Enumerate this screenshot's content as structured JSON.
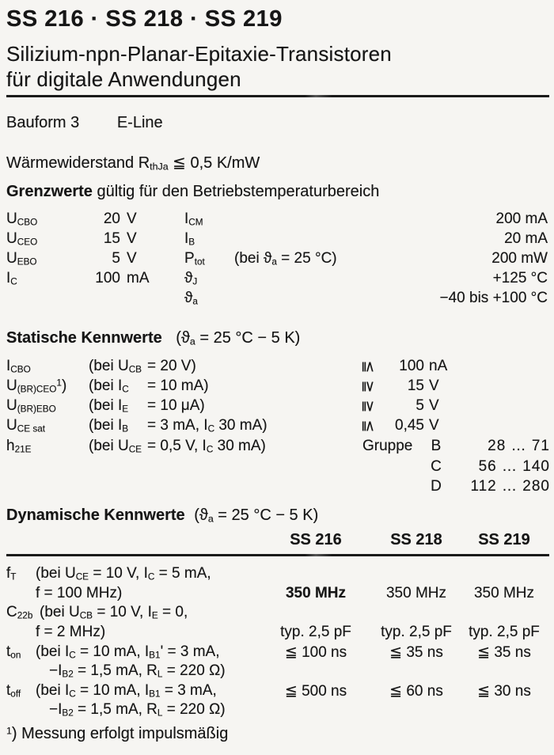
{
  "header": {
    "title": "SS 216 · SS 218 · SS 219",
    "subtitle_line1": "Silizium-npn-Planar-Epitaxie-Transistoren",
    "subtitle_line2": "für digitale Anwendungen",
    "bauform_label": "Bauform 3",
    "bauform_value": "E-Line"
  },
  "thermal": "Wärmewiderstand  R_{thJa} ≦ 0,5 K/mW",
  "limits": {
    "heading_bold": "Grenzwerte",
    "heading_rest": " gültig für den Betriebstemperaturbereich",
    "rows": [
      {
        "sym1": "U_{CBO}",
        "v1n": "20",
        "v1u": "V",
        "sym2": "I_{CM}",
        "cond": "",
        "val2": "200 mA"
      },
      {
        "sym1": "U_{CEO}",
        "v1n": "15",
        "v1u": "V",
        "sym2": "I_{B}",
        "cond": "",
        "val2": "20 mA"
      },
      {
        "sym1": "U_{EBO}",
        "v1n": "5",
        "v1u": "V",
        "sym2": "P_{tot}",
        "cond": "(bei ϑ_{a} = 25 °C)",
        "val2": "200 mW"
      },
      {
        "sym1": "I_{C}",
        "v1n": "100",
        "v1u": "mA",
        "sym2": "ϑ_{J}",
        "cond": "",
        "val2": "+125 °C"
      },
      {
        "sym1": "",
        "v1n": "",
        "v1u": "",
        "sym2": "ϑ_{a}",
        "cond": "",
        "val2": "−40 bis +100 °C"
      }
    ]
  },
  "statics": {
    "heading_bold": "Statische Kennwerte",
    "heading_cond": "(ϑ_{a} = 25 °C − 5 K)",
    "rows": [
      {
        "sym": "I_{CBO}",
        "c1": "(bei U_{CB}",
        "c2": "= 20 V)",
        "rel": "≦",
        "vn": "100",
        "vu": "nA"
      },
      {
        "sym": "U_{(BR)CEO}^{1})",
        "c1": "(bei I_{C}",
        "c2": "= 10 mA)",
        "rel": "≧",
        "vn": "15",
        "vu": "V"
      },
      {
        "sym": "U_{(BR)EBO}",
        "c1": "(bei I_{E}",
        "c2": "= 10 μA)",
        "rel": "≧",
        "vn": "5",
        "vu": "V"
      },
      {
        "sym": "U_{CE sat}",
        "c1": "(bei I_{B}",
        "c2": "= 3 mA, I_{C} 30 mA)",
        "rel": "≦",
        "vn": "0,45",
        "vu": "V"
      },
      {
        "sym": "h_{21E}",
        "c1": "(bei U_{CE}",
        "c2": "= 0,5 V, I_{C} 30 mA)",
        "rel": "",
        "vn": "",
        "vu": ""
      }
    ],
    "gruppe_rows": [
      {
        "prefix": "Gruppe",
        "letter": "B",
        "range": "28 …  71"
      },
      {
        "prefix": "",
        "letter": "C",
        "range": "56 … 140"
      },
      {
        "prefix": "",
        "letter": "D",
        "range": "112 … 280"
      }
    ]
  },
  "dynamics": {
    "heading_bold": "Dynamische Kennwerte",
    "heading_cond": "(ϑ_{a} = 25 °C − 5 K)",
    "columns": [
      "SS 216",
      "SS 218",
      "SS 219"
    ],
    "rows": [
      {
        "label": "f_{T}",
        "cond1": "(bei U_{CE} = 10 V, I_{C} = 5 mA,",
        "cond2": "f = 100 MHz)",
        "values": [
          "350 MHz",
          "350 MHz",
          "350 MHz"
        ]
      },
      {
        "label": "C_{22b}",
        "cond1": "(bei U_{CB} = 10 V, I_{E} = 0,",
        "cond2": "f = 2 MHz)",
        "values": [
          "typ. 2,5 pF",
          "typ. 2,5 pF",
          "typ. 2,5 pF"
        ]
      },
      {
        "label": "t_{on}",
        "cond1": "(bei I_{C} = 10 mA, I_{B1}' = 3 mA,",
        "cond2": "−I_{B2} = 1,5 mA, R_{L} = 220 Ω)",
        "values": [
          "≦ 100 ns",
          "≦ 35 ns",
          "≦ 35 ns"
        ]
      },
      {
        "label": "t_{off}",
        "cond1": "(bei I_{C} = 10 mA, I_{B1} = 3 mA,",
        "cond2": "−I_{B2} = 1,5 mA, R_{L} = 220 Ω)",
        "values": [
          "≦ 500 ns",
          "≦ 60 ns",
          "≦ 30 ns"
        ]
      }
    ]
  },
  "footnote": "^{1}) Messung erfolgt impulsmäßig"
}
